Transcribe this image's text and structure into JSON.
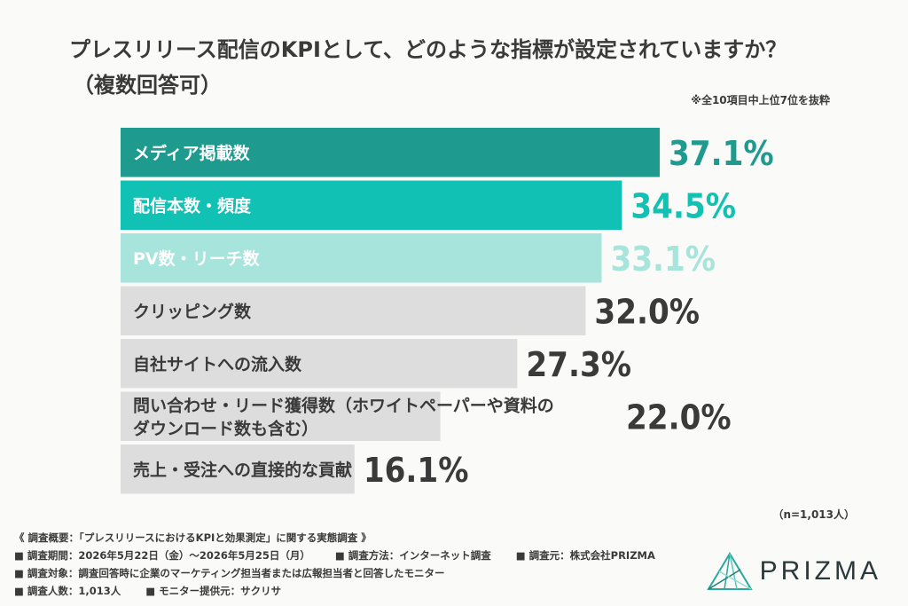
{
  "title": {
    "line1": "プレスリリース配信のKPIとして、どのような指標が設定されていますか？",
    "line2": "（複数回答可）"
  },
  "note": "※全10項目中上位7位を抜粋",
  "sample": "（n=1,013人）",
  "chart_data": {
    "type": "bar",
    "orientation": "horizontal",
    "categories": [
      "メディア掲載数",
      "配信本数・頻度",
      "PV数・リーチ数",
      "クリッピング数",
      "自社サイトへの流入数",
      "問い合わせ・リード獲得数（ホワイトペーパーや資料のダウンロード数も含む）",
      "売上・受注への直接的な貢献"
    ],
    "category_lines": [
      [
        "メディア掲載数"
      ],
      [
        "配信本数・頻度"
      ],
      [
        "PV数・リーチ数"
      ],
      [
        "クリッピング数"
      ],
      [
        "自社サイトへの流入数"
      ],
      [
        "問い合わせ・リード獲得数（ホワイトペーパーや資料の",
        "ダウンロード数も含む）"
      ],
      [
        "売上・受注への直接的な貢献"
      ]
    ],
    "values": [
      37.1,
      34.5,
      33.1,
      32.0,
      27.3,
      22.0,
      16.1
    ],
    "value_labels": [
      "37.1%",
      "34.5%",
      "33.1%",
      "32.0%",
      "27.3%",
      "22.0%",
      "16.1%"
    ],
    "bar_colors": [
      "#1e9a8e",
      "#11c1b3",
      "#a6e4dc",
      "#dddddd",
      "#dddddd",
      "#dddddd",
      "#dddddd"
    ],
    "label_colors": [
      "#ffffff",
      "#ffffff",
      "#ffffff",
      "#3a3a3a",
      "#3a3a3a",
      "#3a3a3a",
      "#3a3a3a"
    ],
    "value_colors": [
      "#1e9a8e",
      "#11c1b3",
      "#a6e4dc",
      "#3a3a3a",
      "#3a3a3a",
      "#3a3a3a",
      "#3a3a3a"
    ],
    "xlim": [
      0,
      37.1
    ],
    "grid": false,
    "legend": "none"
  },
  "footer": {
    "summary": "《 調査概要：「プレスリリースにおけるKPIと効果測定」に関する実態調査 》",
    "period": "■ 調査期間：2026年5月22日（金）〜2026年5月25日（月）",
    "method": "■ 調査方法：インターネット調査",
    "org": "■ 調査元：株式会社PRIZMA",
    "target": "■ 調査対象：調査回答時に企業のマーケティング担当者または広報担当者と回答したモニター",
    "count": "■ 調査人数：1,013人",
    "provider": "■ モニター提供元：サクリサ"
  },
  "logo": {
    "text": "PRIZMA",
    "icon": "prism-logo-icon",
    "color": "#2aa99c"
  }
}
